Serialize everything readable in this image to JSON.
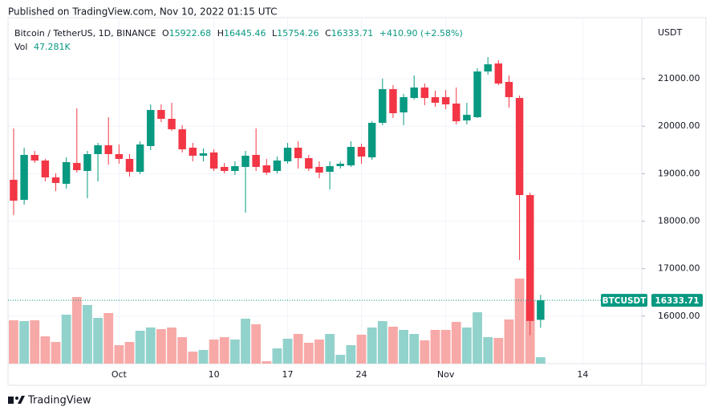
{
  "header": {
    "published": "Published on TradingView.com, Nov 10, 2022 01:15 UTC"
  },
  "footer": {
    "brand": "TradingView"
  },
  "chart_data": {
    "type": "candlestick",
    "symbol_line": "Bitcoin / TetherUS, 1D, BINANCE",
    "ohlc_letters": [
      "O",
      "H",
      "L",
      "C"
    ],
    "change": "+410.90 (+2.58%)",
    "volume_name": "Vol",
    "volume_last_label": "47.281K",
    "ticker": "BTCUSDT",
    "currency": "USDT",
    "up_color": "#089981",
    "down_color": "#f23645",
    "volume_up_color": "#92d2cc",
    "volume_down_color": "#f7a9a7",
    "grid": true,
    "open": [
      18871,
      18449,
      19395,
      19277,
      18922,
      18787,
      19226,
      19057,
      19412,
      19598,
      19412,
      19311,
      19040,
      19581,
      20341,
      20155,
      19935,
      19547,
      19378,
      19446,
      19142,
      19057,
      19142,
      19395,
      19175,
      19057,
      19260,
      19547,
      19327,
      19142,
      19040,
      19159,
      19175,
      19564,
      19344,
      20070,
      20780,
      20290,
      20594,
      20814,
      20611,
      20611,
      20476,
      20121,
      20189,
      21152,
      21320,
      20932,
      20594,
      18550,
      15922.68
    ],
    "high": [
      19952,
      19547,
      19480,
      19311,
      19006,
      19344,
      20375,
      19479,
      19648,
      20189,
      19615,
      19412,
      19682,
      20459,
      20459,
      20493,
      20020,
      19648,
      19530,
      19513,
      19226,
      19260,
      19479,
      19952,
      19311,
      19361,
      19648,
      19682,
      19395,
      19260,
      19260,
      19260,
      19682,
      19631,
      20104,
      21000,
      20864,
      20678,
      21067,
      20898,
      20746,
      20763,
      20814,
      20493,
      21219,
      21455,
      21388,
      21067,
      20645,
      18601,
      16445.46
    ],
    "low": [
      18128,
      18348,
      19226,
      18838,
      18635,
      18686,
      19023,
      18483,
      18837,
      19192,
      19209,
      18939,
      18990,
      19496,
      20087,
      19902,
      19446,
      19260,
      19260,
      19057,
      19006,
      18973,
      18179,
      19057,
      18973,
      19006,
      19209,
      19108,
      19057,
      18905,
      18669,
      19108,
      19142,
      19209,
      19294,
      20020,
      20172,
      20020,
      20560,
      20442,
      20408,
      20358,
      20037,
      20037,
      20172,
      21084,
      20864,
      20391,
      17182,
      15595,
      15754.26
    ],
    "close": [
      18432,
      19395,
      19277,
      18922,
      18804,
      19243,
      19074,
      19412,
      19598,
      19412,
      19311,
      19040,
      19615,
      20341,
      20155,
      19935,
      19513,
      19378,
      19429,
      19108,
      19057,
      19159,
      19378,
      19142,
      19023,
      19277,
      19547,
      19327,
      19108,
      19023,
      19159,
      19209,
      19564,
      19361,
      20070,
      20780,
      20273,
      20611,
      20814,
      20594,
      20493,
      20459,
      20104,
      20239,
      21152,
      21303,
      20898,
      20611,
      18550,
      15899,
      16333.71
    ],
    "volume": [
      319100,
      313200,
      319100,
      200900,
      159600,
      360500,
      490500,
      431400,
      336900,
      372300,
      135900,
      159600,
      242300,
      265900,
      254100,
      265900,
      195000,
      88700,
      100500,
      177300,
      195000,
      177300,
      331000,
      289600,
      17700,
      112300,
      183200,
      218700,
      153700,
      177300,
      218700,
      65000,
      135900,
      212800,
      265900,
      313200,
      271900,
      248200,
      218700,
      171400,
      248200,
      248200,
      307300,
      265900,
      378200,
      195000,
      189100,
      325100,
      626500,
      466900,
      47281
    ],
    "xlim": [
      -0.53,
      59.6
    ],
    "xticks": [
      {
        "value": 10,
        "label": "Oct"
      },
      {
        "value": 19,
        "label": "10"
      },
      {
        "value": 26,
        "label": "17"
      },
      {
        "value": 33,
        "label": "24"
      },
      {
        "value": 41,
        "label": "Nov"
      },
      {
        "value": 54,
        "label": "14"
      }
    ],
    "ylim": [
      15000,
      22150
    ],
    "yticks": [
      {
        "value": 16000,
        "label": "16000.00"
      },
      {
        "value": 17000,
        "label": "17000.00"
      },
      {
        "value": 18000,
        "label": "18000.00"
      },
      {
        "value": 19000,
        "label": "19000.00"
      },
      {
        "value": 20000,
        "label": "20000.00"
      },
      {
        "value": 21000,
        "label": "21000.00"
      }
    ]
  }
}
